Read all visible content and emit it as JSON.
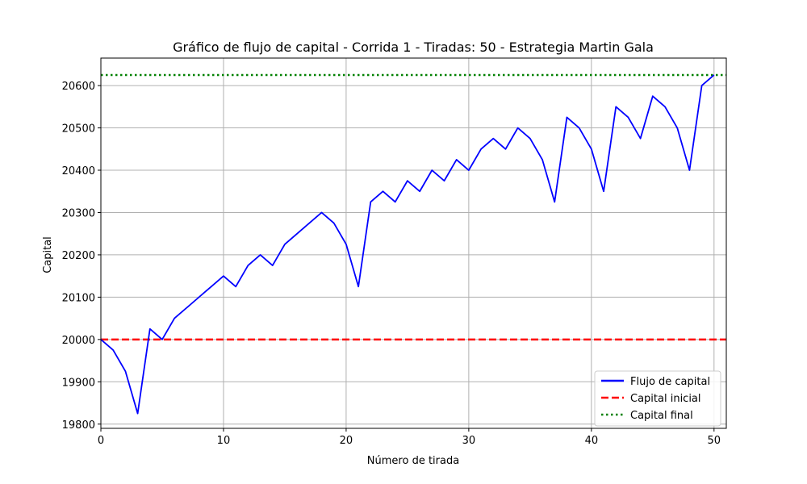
{
  "chart_data": {
    "type": "line",
    "title": "Gráfico de flujo de capital - Corrida 1 - Tiradas: 50 - Estrategia Martin Gala",
    "xlabel": "Número de tirada",
    "ylabel": "Capital",
    "xlim": [
      0,
      51
    ],
    "ylim": [
      19790,
      20665
    ],
    "xticks": [
      0,
      10,
      20,
      30,
      40,
      50
    ],
    "yticks": [
      19800,
      19900,
      20000,
      20100,
      20200,
      20300,
      20400,
      20500,
      20600
    ],
    "grid": true,
    "legend_position": "lower-right",
    "x": [
      0,
      1,
      2,
      3,
      4,
      5,
      6,
      7,
      8,
      9,
      10,
      11,
      12,
      13,
      14,
      15,
      16,
      17,
      18,
      19,
      20,
      21,
      22,
      23,
      24,
      25,
      26,
      27,
      28,
      29,
      30,
      31,
      32,
      33,
      34,
      35,
      36,
      37,
      38,
      39,
      40,
      41,
      42,
      43,
      44,
      45,
      46,
      47,
      48,
      49,
      50
    ],
    "series": [
      {
        "name": "Flujo de capital",
        "color": "#0000ff",
        "style": "solid",
        "values": [
          20000,
          19975,
          19925,
          19825,
          20025,
          20000,
          20050,
          20075,
          20100,
          20125,
          20150,
          20125,
          20175,
          20200,
          20175,
          20225,
          20250,
          20275,
          20300,
          20275,
          20225,
          20125,
          20325,
          20350,
          20325,
          20375,
          20350,
          20400,
          20375,
          20425,
          20400,
          20450,
          20475,
          20450,
          20500,
          20475,
          20425,
          20325,
          20525,
          20500,
          20450,
          20350,
          20550,
          20525,
          20475,
          20575,
          20550,
          20500,
          20400,
          20600,
          20625
        ]
      }
    ],
    "reference_lines": [
      {
        "name": "Capital inicial",
        "y": 20000,
        "color": "#ff0000",
        "style": "dashed"
      },
      {
        "name": "Capital final",
        "y": 20625,
        "color": "#008000",
        "style": "dotted"
      }
    ]
  }
}
